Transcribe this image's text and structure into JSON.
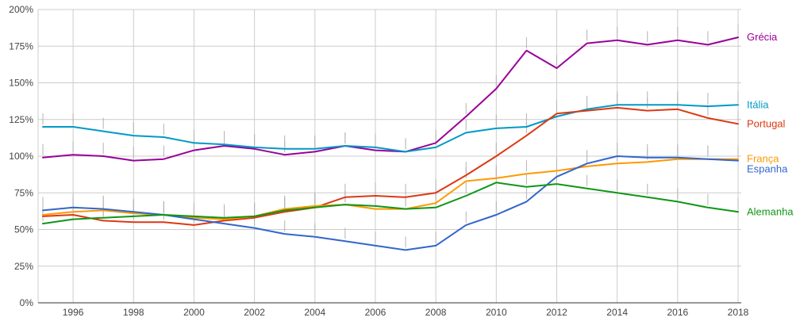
{
  "chart_data": {
    "type": "line",
    "title": "",
    "xlabel": "",
    "ylabel": "",
    "unit": "%",
    "ylim": [
      0,
      200
    ],
    "y_tick_step": 25,
    "grid": true,
    "legend_position": "right-edge-labels",
    "y_tick_labels": [
      "0%",
      "25%",
      "50%",
      "75%",
      "100%",
      "125%",
      "150%",
      "175%",
      "200%"
    ],
    "x_tick_labels": [
      "1996",
      "1998",
      "2000",
      "2002",
      "2004",
      "2006",
      "2008",
      "2010",
      "2012",
      "2014",
      "2016",
      "2018"
    ],
    "x": [
      1995,
      1996,
      1997,
      1998,
      1999,
      2000,
      2001,
      2002,
      2003,
      2004,
      2005,
      2006,
      2007,
      2008,
      2009,
      2010,
      2011,
      2012,
      2013,
      2014,
      2015,
      2016,
      2017,
      2018
    ],
    "series": [
      {
        "name": "Grécia",
        "color": "#990099",
        "values": [
          99,
          101,
          100,
          97,
          98,
          104,
          107,
          105,
          101,
          103,
          107,
          104,
          103,
          109,
          127,
          146,
          172,
          160,
          177,
          179,
          176,
          179,
          176,
          181
        ]
      },
      {
        "name": "Itália",
        "color": "#0099c6",
        "values": [
          120,
          120,
          117,
          114,
          113,
          109,
          108,
          106,
          105,
          105,
          107,
          106,
          103,
          106,
          116,
          119,
          120,
          127,
          132,
          135,
          135,
          135,
          134,
          135
        ]
      },
      {
        "name": "Portugal",
        "color": "#dc3912",
        "values": [
          59,
          60,
          56,
          55,
          55,
          53,
          56,
          58,
          62,
          65,
          72,
          73,
          72,
          75,
          87,
          100,
          114,
          129,
          131,
          133,
          131,
          132,
          126,
          122
        ]
      },
      {
        "name": "França",
        "color": "#ff9900",
        "values": [
          60,
          62,
          63,
          61,
          60,
          58,
          57,
          59,
          64,
          66,
          67,
          64,
          64,
          68,
          83,
          85,
          88,
          90,
          93,
          95,
          96,
          98,
          98,
          98
        ]
      },
      {
        "name": "Espanha",
        "color": "#3366cc",
        "values": [
          63,
          65,
          64,
          62,
          60,
          57,
          54,
          51,
          47,
          45,
          42,
          39,
          36,
          39,
          53,
          60,
          69,
          86,
          95,
          100,
          99,
          99,
          98,
          97
        ]
      },
      {
        "name": "Alemanha",
        "color": "#109618",
        "values": [
          54,
          57,
          58,
          59,
          60,
          59,
          58,
          59,
          63,
          65,
          67,
          66,
          64,
          65,
          73,
          82,
          79,
          81,
          78,
          75,
          72,
          69,
          65,
          62
        ]
      }
    ],
    "colors": {
      "background": "#ffffff",
      "gridline": "#cccccc",
      "baseline": "#333333",
      "axis_label": "#444444",
      "whisker": "#b3b3b3"
    }
  }
}
